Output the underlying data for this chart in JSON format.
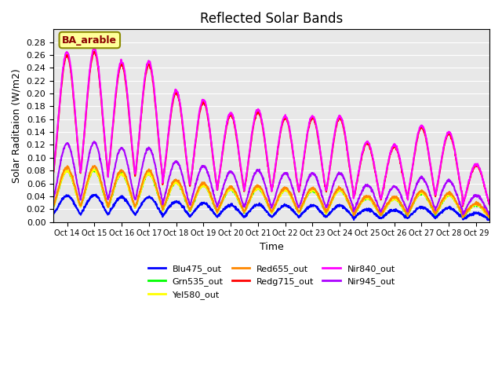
{
  "title": "Reflected Solar Bands",
  "xlabel": "Time",
  "ylabel": "Solar Raditaion (W/m2)",
  "ylim": [
    0,
    0.3
  ],
  "yticks": [
    0.0,
    0.02,
    0.04,
    0.06,
    0.08,
    0.1,
    0.12,
    0.14,
    0.16,
    0.18,
    0.2,
    0.22,
    0.24,
    0.26,
    0.28
  ],
  "annotation_text": "BA_arable",
  "annotation_color": "#8B0000",
  "annotation_bg": "#FFFF99",
  "series_names": [
    "Blu475_out",
    "Grn535_out",
    "Yel580_out",
    "Red655_out",
    "Redg715_out",
    "Nir840_out",
    "Nir945_out"
  ],
  "series_colors": [
    "#0000FF",
    "#00FF00",
    "#FFFF00",
    "#FF8800",
    "#FF0000",
    "#FF00FF",
    "#AA00FF"
  ],
  "series_lw": [
    1.5,
    1.5,
    1.5,
    1.5,
    1.5,
    1.5,
    1.5
  ],
  "band_ratios": [
    0.155,
    0.3,
    0.3,
    0.32,
    0.98,
    1.0,
    0.46
  ],
  "day_peaks": [
    0.265,
    0.27,
    0.25,
    0.25,
    0.205,
    0.19,
    0.17,
    0.175,
    0.165,
    0.165,
    0.165,
    0.125,
    0.12,
    0.15,
    0.14,
    0.09
  ],
  "tick_labels": [
    "Oct 14",
    "Oct 15",
    "Oct 16",
    "Oct 17",
    "Oct 18",
    "Oct 19",
    "Oct 20",
    "Oct 21",
    "Oct 22",
    "Oct 23",
    "Oct 24",
    "Oct 25",
    "Oct 26",
    "Oct 27",
    "Oct 28",
    "Oct 29"
  ],
  "num_days": 16,
  "pts_per_day": 100,
  "bg_color": "#E8E8E8"
}
